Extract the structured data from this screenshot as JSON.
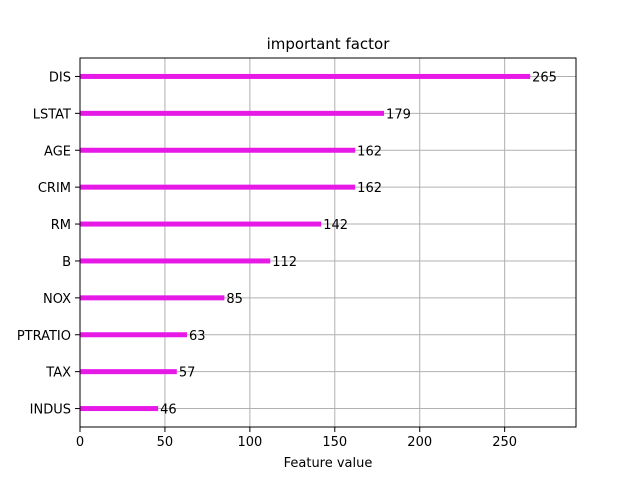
{
  "chart_data": {
    "type": "bar",
    "orientation": "horizontal",
    "title": "important factor",
    "xlabel": "Feature value",
    "ylabel": "",
    "xlim": [
      0,
      292
    ],
    "x_ticks": [
      0,
      50,
      100,
      150,
      200,
      250
    ],
    "grid": true,
    "bar_color": "#e619e6",
    "categories": [
      "DIS",
      "LSTAT",
      "AGE",
      "CRIM",
      "RM",
      "B",
      "NOX",
      "PTRATIO",
      "TAX",
      "INDUS"
    ],
    "values": [
      265,
      179,
      162,
      162,
      142,
      112,
      85,
      63,
      57,
      46
    ],
    "data_labels": [
      "265",
      "179",
      "162",
      "162",
      "142",
      "112",
      "85",
      "63",
      "57",
      "46"
    ]
  }
}
